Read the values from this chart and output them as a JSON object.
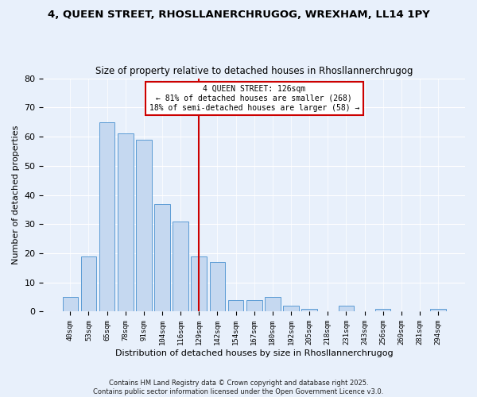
{
  "title": "4, QUEEN STREET, RHOSLLANERCHRUGOG, WREXHAM, LL14 1PY",
  "subtitle": "Size of property relative to detached houses in Rhosllannerchrugog",
  "xlabel": "Distribution of detached houses by size in Rhosllannerchrugog",
  "ylabel": "Number of detached properties",
  "bar_labels": [
    "40sqm",
    "53sqm",
    "65sqm",
    "78sqm",
    "91sqm",
    "104sqm",
    "116sqm",
    "129sqm",
    "142sqm",
    "154sqm",
    "167sqm",
    "180sqm",
    "192sqm",
    "205sqm",
    "218sqm",
    "231sqm",
    "243sqm",
    "256sqm",
    "269sqm",
    "281sqm",
    "294sqm"
  ],
  "bar_values": [
    5,
    19,
    65,
    61,
    59,
    37,
    31,
    19,
    17,
    4,
    4,
    5,
    2,
    1,
    0,
    2,
    0,
    1,
    0,
    0,
    1
  ],
  "bar_color": "#c5d8f0",
  "bar_edge_color": "#5b9bd5",
  "vline_x_index": 7,
  "vline_color": "#cc0000",
  "annotation_title": "4 QUEEN STREET: 126sqm",
  "annotation_line1": "← 81% of detached houses are smaller (268)",
  "annotation_line2": "18% of semi-detached houses are larger (58) →",
  "annotation_box_color": "#ffffff",
  "annotation_box_edge": "#cc0000",
  "ylim": [
    0,
    80
  ],
  "yticks": [
    0,
    10,
    20,
    30,
    40,
    50,
    60,
    70,
    80
  ],
  "bg_color": "#e8f0fb",
  "fig_color": "#e8f0fb",
  "footer1": "Contains HM Land Registry data © Crown copyright and database right 2025.",
  "footer2": "Contains public sector information licensed under the Open Government Licence v3.0."
}
